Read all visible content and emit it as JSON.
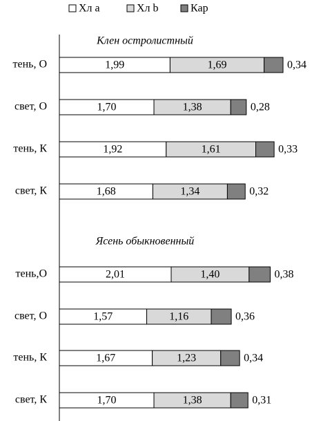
{
  "chart_data": [
    {
      "type": "bar",
      "orientation": "horizontal",
      "stacked": true,
      "title": "Клен остролистный",
      "categories": [
        "тень, О",
        "свет, О",
        "тень,  К",
        "свет, К"
      ],
      "series": [
        {
          "name": "Хл a",
          "color": "#ffffff",
          "values": [
            1.99,
            1.7,
            1.92,
            1.68
          ],
          "value_labels": [
            "1,99",
            "1,70",
            "1,92",
            "1,68"
          ]
        },
        {
          "name": "Хл b",
          "color": "#d9d9d9",
          "values": [
            1.69,
            1.38,
            1.61,
            1.34
          ],
          "value_labels": [
            "1,69",
            "1,38",
            "1,61",
            "1,34"
          ]
        },
        {
          "name": "Кар",
          "color": "#808080",
          "values": [
            0.34,
            0.28,
            0.33,
            0.32
          ],
          "value_labels": [
            "0,34",
            "0,28",
            "0,33",
            "0,32"
          ]
        }
      ]
    },
    {
      "type": "bar",
      "orientation": "horizontal",
      "stacked": true,
      "title": "Ясень обыкновенный",
      "categories": [
        "тень,О",
        "свет, О",
        "тень,  К",
        "свет, К"
      ],
      "series": [
        {
          "name": "Хл a",
          "color": "#ffffff",
          "values": [
            2.01,
            1.57,
            1.67,
            1.7
          ],
          "value_labels": [
            "2,01",
            "1,57",
            "1,67",
            "1,70"
          ]
        },
        {
          "name": "Хл b",
          "color": "#d9d9d9",
          "values": [
            1.4,
            1.16,
            1.23,
            1.38
          ],
          "value_labels": [
            "1,40",
            "1,16",
            "1,23",
            "1,38"
          ]
        },
        {
          "name": "Кар",
          "color": "#808080",
          "values": [
            0.38,
            0.36,
            0.34,
            0.31
          ],
          "value_labels": [
            "0,38",
            "0,36",
            "0,34",
            "0,31"
          ]
        }
      ]
    }
  ]
}
